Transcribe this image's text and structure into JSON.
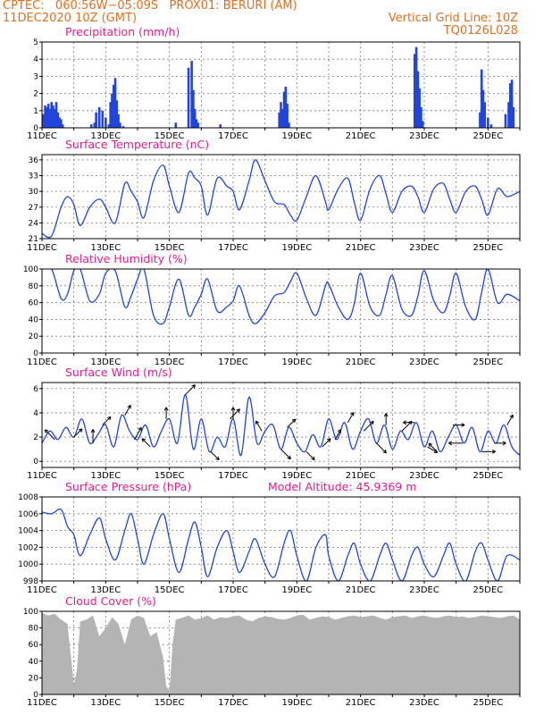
{
  "header": {
    "line1": "CPTEC:   060:56W−05:09S   PROX01: BERURI (AM)",
    "line2_left": "11DEC2020 10Z (GMT)",
    "line2_right": "Vertical Grid Line: 10Z",
    "line3_right": "TQ0126L028"
  },
  "colors": {
    "header": "#e07020",
    "title": "#e0208a",
    "line": "#2244dd",
    "cloud": "#b4b4b4",
    "wind_arrow": "#000000"
  },
  "x_tick_labels": [
    "11DEC",
    "13DEC",
    "15DEC",
    "17DEC",
    "19DEC",
    "21DEC",
    "23DEC",
    "25DEC"
  ],
  "chart_data": [
    {
      "type": "bar",
      "title": "Precipitation (mm/h)",
      "ylim": [
        0,
        5
      ],
      "yticks": [
        0,
        1,
        2,
        3,
        4,
        5
      ],
      "x_range_days": [
        0,
        15
      ],
      "x": [
        0.05,
        0.1,
        0.15,
        0.2,
        0.25,
        0.3,
        0.35,
        0.4,
        0.45,
        0.5,
        0.55,
        0.6,
        0.65,
        1.55,
        1.65,
        1.7,
        1.8,
        1.9,
        2.0,
        2.1,
        2.15,
        2.2,
        2.25,
        2.3,
        2.35,
        2.4,
        2.45,
        2.55,
        4.2,
        4.6,
        4.7,
        4.75,
        4.8,
        4.85,
        4.9,
        5.6,
        7.45,
        7.5,
        7.55,
        7.6,
        7.65,
        7.7,
        7.75,
        11.7,
        11.75,
        11.8,
        11.85,
        11.9,
        11.95,
        13.75,
        13.8,
        13.85,
        13.9,
        14.0,
        14.1,
        14.55,
        14.65,
        14.7,
        14.75,
        14.8
      ],
      "values": [
        0.8,
        1.3,
        1.2,
        1.4,
        1.1,
        1.5,
        1.3,
        1.1,
        1.5,
        0.9,
        0.6,
        0.5,
        0.2,
        0.2,
        0.3,
        0.9,
        1.2,
        1.0,
        0.6,
        0.2,
        1.5,
        2.0,
        2.5,
        2.9,
        1.6,
        0.8,
        0.3,
        0.1,
        0.3,
        3.5,
        3.9,
        2.2,
        1.1,
        0.5,
        0.3,
        0.2,
        0.9,
        1.5,
        1.1,
        2.1,
        2.4,
        1.4,
        0.3,
        4.3,
        4.7,
        3.3,
        2.3,
        1.2,
        0.4,
        0.9,
        3.4,
        2.2,
        1.5,
        0.6,
        0.2,
        0.8,
        1.5,
        2.6,
        2.8,
        1.2
      ]
    },
    {
      "type": "line",
      "title": "Surface Temperature (nC)",
      "ylim": [
        21,
        37
      ],
      "yticks": [
        21,
        24,
        27,
        30,
        33,
        36
      ],
      "x_range_days": [
        0,
        15
      ],
      "x": [
        0,
        0.3,
        0.6,
        0.8,
        1.0,
        1.2,
        1.5,
        1.8,
        2.0,
        2.3,
        2.6,
        2.8,
        3.0,
        3.2,
        3.5,
        3.8,
        4.0,
        4.3,
        4.6,
        4.8,
        5.0,
        5.2,
        5.5,
        5.8,
        6.0,
        6.2,
        6.5,
        6.7,
        7.0,
        7.3,
        7.6,
        7.8,
        8.0,
        8.3,
        8.6,
        8.9,
        9.0,
        9.3,
        9.6,
        9.8,
        10.0,
        10.3,
        10.6,
        10.8,
        11.0,
        11.3,
        11.6,
        11.8,
        12.0,
        12.3,
        12.6,
        12.8,
        13.0,
        13.3,
        13.6,
        13.8,
        14.0,
        14.3,
        14.6,
        15.0
      ],
      "values": [
        22.0,
        21.5,
        27.0,
        29.0,
        27.5,
        23.5,
        27.0,
        28.5,
        27.0,
        24.0,
        31.5,
        30.0,
        28.0,
        25.0,
        32.0,
        35.0,
        31.0,
        26.0,
        33.5,
        32.5,
        31.0,
        25.5,
        32.5,
        31.0,
        30.0,
        26.5,
        32.0,
        36.0,
        32.0,
        28.0,
        27.5,
        25.5,
        24.5,
        29.0,
        33.0,
        28.0,
        26.5,
        30.5,
        32.5,
        28.0,
        24.5,
        30.5,
        33.0,
        29.5,
        26.0,
        30.0,
        31.0,
        29.0,
        26.0,
        30.5,
        31.5,
        28.5,
        26.0,
        30.0,
        31.0,
        28.5,
        25.5,
        30.5,
        29.0,
        30.0
      ]
    },
    {
      "type": "line",
      "title": "Relative Humidity (%)",
      "ylim": [
        0,
        100
      ],
      "yticks": [
        0,
        20,
        40,
        60,
        80,
        100
      ],
      "x_range_days": [
        0,
        15
      ],
      "x": [
        0,
        0.3,
        0.6,
        0.8,
        1.0,
        1.2,
        1.5,
        1.8,
        2.0,
        2.3,
        2.6,
        2.8,
        3.0,
        3.2,
        3.5,
        3.8,
        4.0,
        4.3,
        4.6,
        4.8,
        5.0,
        5.2,
        5.5,
        5.8,
        6.0,
        6.2,
        6.5,
        6.7,
        7.0,
        7.3,
        7.6,
        7.8,
        8.0,
        8.3,
        8.6,
        8.9,
        9.0,
        9.3,
        9.6,
        9.8,
        10.0,
        10.3,
        10.6,
        10.8,
        11.0,
        11.3,
        11.6,
        11.8,
        12.0,
        12.3,
        12.6,
        12.8,
        13.0,
        13.3,
        13.6,
        13.8,
        14.0,
        14.3,
        14.6,
        15.0
      ],
      "values": [
        100,
        100,
        65,
        70,
        98,
        100,
        62,
        70,
        95,
        98,
        55,
        68,
        88,
        100,
        45,
        35,
        55,
        88,
        45,
        55,
        70,
        88,
        50,
        55,
        62,
        80,
        45,
        35,
        48,
        68,
        72,
        85,
        95,
        65,
        45,
        80,
        82,
        55,
        40,
        58,
        95,
        55,
        45,
        70,
        92,
        52,
        45,
        68,
        98,
        62,
        48,
        68,
        95,
        55,
        40,
        72,
        100,
        60,
        70,
        62
      ]
    },
    {
      "type": "line",
      "title": "Surface Wind (m/s)",
      "ylim": [
        -0.5,
        6.5
      ],
      "yticks": [
        0,
        2,
        4,
        6
      ],
      "x_range_days": [
        0,
        15
      ],
      "x": [
        0,
        0.25,
        0.5,
        0.75,
        1.0,
        1.25,
        1.5,
        1.75,
        2.0,
        2.25,
        2.5,
        2.75,
        3.0,
        3.25,
        3.5,
        3.75,
        4.0,
        4.25,
        4.5,
        4.75,
        5.0,
        5.25,
        5.5,
        5.75,
        6.0,
        6.25,
        6.5,
        6.75,
        7.0,
        7.25,
        7.5,
        7.75,
        8.0,
        8.25,
        8.5,
        8.75,
        9.0,
        9.25,
        9.5,
        9.75,
        10.0,
        10.25,
        10.5,
        10.75,
        11.0,
        11.25,
        11.5,
        11.75,
        12.0,
        12.25,
        12.5,
        12.75,
        13.0,
        13.25,
        13.5,
        13.75,
        14.0,
        14.25,
        14.5,
        14.75,
        15.0
      ],
      "values": [
        1.5,
        2.5,
        1.8,
        2.8,
        2.0,
        3.5,
        1.5,
        2.2,
        3.0,
        1.2,
        3.8,
        2.5,
        1.8,
        3.0,
        1.2,
        2.5,
        3.5,
        1.5,
        5.5,
        1.0,
        3.5,
        0.8,
        2.0,
        1.2,
        3.5,
        0.5,
        5.3,
        1.5,
        2.5,
        3.0,
        1.0,
        2.8,
        1.5,
        0.8,
        2.2,
        1.2,
        3.5,
        1.8,
        3.2,
        1.0,
        2.5,
        3.5,
        1.5,
        3.0,
        1.0,
        2.5,
        1.8,
        3.2,
        1.2,
        2.5,
        0.8,
        2.0,
        3.0,
        1.5,
        2.8,
        0.8,
        2.5,
        1.5,
        3.0,
        1.2,
        0.5
      ],
      "arrow_x": [
        0.4,
        1.0,
        1.6,
        1.9,
        2.6,
        2.9,
        3.4,
        3.9,
        4.5,
        5.3,
        5.9,
        6.0,
        6.9,
        7.5,
        7.7,
        8.3,
        8.8,
        9.2,
        9.6,
        10.1,
        10.5,
        10.8,
        11.3,
        11.7,
        12.1,
        12.4,
        12.9,
        13.2,
        13.8,
        14.2,
        14.6
      ],
      "arrow_dir": [
        135,
        45,
        90,
        45,
        60,
        60,
        135,
        90,
        45,
        -45,
        45,
        90,
        120,
        -45,
        45,
        -45,
        45,
        60,
        60,
        45,
        -45,
        90,
        45,
        180,
        -30,
        135,
        0,
        180,
        0,
        0,
        60
      ],
      "arrow_len": [
        1.5,
        1.0,
        1.5,
        1.0,
        1.0,
        1.5,
        1.0,
        1.0,
        1.5,
        1.0,
        1.5,
        1.0,
        1.0,
        1.5,
        1.0,
        1.0,
        1.0,
        1.0,
        1.0,
        1.5,
        1.5,
        1.0,
        1.5,
        1.0,
        1.0,
        1.0,
        1.0,
        1.5,
        1.5,
        1.0,
        1.0
      ]
    },
    {
      "type": "line",
      "title": "Surface Pressure (hPa)",
      "annotation": "Model Altitude: 45.9369 m",
      "ylim": [
        998,
        1008
      ],
      "yticks": [
        998,
        1000,
        1002,
        1004,
        1006,
        1008
      ],
      "x_range_days": [
        0,
        15
      ],
      "x": [
        0,
        0.3,
        0.6,
        0.8,
        1.0,
        1.2,
        1.5,
        1.8,
        2.0,
        2.3,
        2.6,
        2.8,
        3.0,
        3.2,
        3.5,
        3.8,
        4.0,
        4.3,
        4.6,
        4.8,
        5.0,
        5.2,
        5.5,
        5.8,
        6.0,
        6.2,
        6.5,
        6.7,
        7.0,
        7.3,
        7.6,
        7.8,
        8.0,
        8.3,
        8.6,
        8.9,
        9.0,
        9.3,
        9.6,
        9.8,
        10.0,
        10.3,
        10.6,
        10.8,
        11.0,
        11.3,
        11.6,
        11.8,
        12.0,
        12.3,
        12.6,
        12.8,
        13.0,
        13.3,
        13.6,
        13.8,
        14.0,
        14.3,
        14.6,
        15.0
      ],
      "values": [
        1006.2,
        1006.0,
        1006.5,
        1004.5,
        1003.5,
        1001.0,
        1003.5,
        1005.5,
        1003.0,
        1000.5,
        1004.0,
        1006.0,
        1003.0,
        1000.0,
        1003.5,
        1006.0,
        1003.0,
        999.0,
        1003.0,
        1005.0,
        1002.0,
        998.5,
        1002.0,
        1004.0,
        1001.5,
        999.0,
        1001.5,
        1003.0,
        1000.0,
        998.5,
        1002.5,
        1004.0,
        1001.0,
        998.0,
        1002.0,
        1003.5,
        1001.0,
        998.0,
        1001.0,
        1002.5,
        1000.0,
        998.0,
        1001.0,
        1002.5,
        1000.5,
        998.0,
        1001.0,
        1002.0,
        1000.0,
        998.5,
        1001.0,
        1002.5,
        1000.0,
        998.0,
        1001.5,
        1002.5,
        1000.5,
        998.0,
        1001.0,
        1000.5
      ]
    },
    {
      "type": "area",
      "title": "Cloud Cover (%)",
      "ylim": [
        0,
        100
      ],
      "yticks": [
        0,
        20,
        40,
        60,
        80,
        100
      ],
      "x_range_days": [
        0,
        15
      ],
      "x": [
        0,
        0.2,
        0.4,
        0.6,
        0.8,
        1.0,
        1.1,
        1.2,
        1.4,
        1.6,
        1.8,
        2.0,
        2.2,
        2.4,
        2.6,
        2.8,
        3.0,
        3.2,
        3.4,
        3.6,
        3.8,
        3.9,
        4.0,
        4.1,
        4.2,
        4.4,
        4.6,
        4.8,
        5.0,
        5.2,
        5.4,
        5.6,
        5.8,
        6.0,
        6.2,
        6.4,
        6.6,
        6.8,
        7.0,
        7.2,
        7.4,
        7.6,
        7.8,
        8.0,
        8.2,
        8.4,
        8.6,
        8.8,
        9.0,
        9.2,
        9.4,
        9.6,
        9.8,
        10.0,
        10.2,
        10.4,
        10.6,
        10.8,
        11.0,
        11.2,
        11.4,
        11.6,
        11.8,
        12.0,
        12.2,
        12.4,
        12.6,
        12.8,
        13.0,
        13.2,
        13.4,
        13.6,
        13.8,
        14.0,
        14.2,
        14.4,
        14.6,
        14.8,
        15.0
      ],
      "values": [
        98,
        95,
        97,
        90,
        85,
        12,
        30,
        88,
        90,
        95,
        70,
        80,
        93,
        85,
        60,
        90,
        95,
        92,
        70,
        75,
        45,
        10,
        5,
        60,
        90,
        92,
        95,
        90,
        92,
        95,
        90,
        93,
        92,
        94,
        95,
        90,
        88,
        92,
        94,
        93,
        91,
        90,
        92,
        95,
        96,
        90,
        92,
        94,
        93,
        90,
        92,
        94,
        95,
        93,
        94,
        95,
        92,
        90,
        93,
        94,
        95,
        92,
        94,
        95,
        93,
        92,
        94,
        95,
        93,
        94,
        92,
        93,
        95,
        94,
        93,
        92,
        94,
        95,
        90
      ]
    }
  ]
}
